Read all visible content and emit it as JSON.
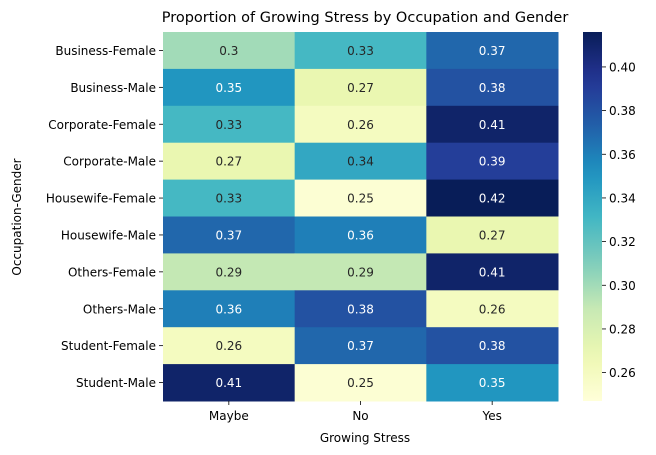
{
  "chart_data": {
    "type": "heatmap",
    "title": "Proportion of Growing Stress by Occupation and Gender",
    "xlabel": "Growing Stress",
    "ylabel": "Occupation-Gender",
    "columns": [
      "Maybe",
      "No",
      "Yes"
    ],
    "rows": [
      "Business-Female",
      "Business-Male",
      "Corporate-Female",
      "Corporate-Male",
      "Housewife-Female",
      "Housewife-Male",
      "Others-Female",
      "Others-Male",
      "Student-Female",
      "Student-Male"
    ],
    "values": [
      [
        0.3,
        0.33,
        0.37
      ],
      [
        0.35,
        0.27,
        0.38
      ],
      [
        0.33,
        0.26,
        0.41
      ],
      [
        0.27,
        0.34,
        0.39
      ],
      [
        0.33,
        0.25,
        0.42
      ],
      [
        0.37,
        0.36,
        0.27
      ],
      [
        0.29,
        0.29,
        0.41
      ],
      [
        0.36,
        0.38,
        0.26
      ],
      [
        0.26,
        0.37,
        0.38
      ],
      [
        0.41,
        0.25,
        0.35
      ]
    ],
    "labels": [
      [
        "0.3",
        "0.33",
        "0.37"
      ],
      [
        "0.35",
        "0.27",
        "0.38"
      ],
      [
        "0.33",
        "0.26",
        "0.41"
      ],
      [
        "0.27",
        "0.34",
        "0.39"
      ],
      [
        "0.33",
        "0.25",
        "0.42"
      ],
      [
        "0.37",
        "0.36",
        "0.27"
      ],
      [
        "0.29",
        "0.29",
        "0.41"
      ],
      [
        "0.36",
        "0.38",
        "0.26"
      ],
      [
        "0.26",
        "0.37",
        "0.38"
      ],
      [
        "0.41",
        "0.25",
        "0.35"
      ]
    ],
    "colormap": "YlGnBu",
    "colorbar": {
      "range": [
        0.247,
        0.416
      ],
      "ticks": [
        0.26,
        0.28,
        0.3,
        0.32,
        0.34,
        0.36,
        0.38,
        0.4
      ],
      "tick_labels": [
        "0.26",
        "0.28",
        "0.30",
        "0.32",
        "0.34",
        "0.36",
        "0.38",
        "0.40"
      ]
    }
  }
}
